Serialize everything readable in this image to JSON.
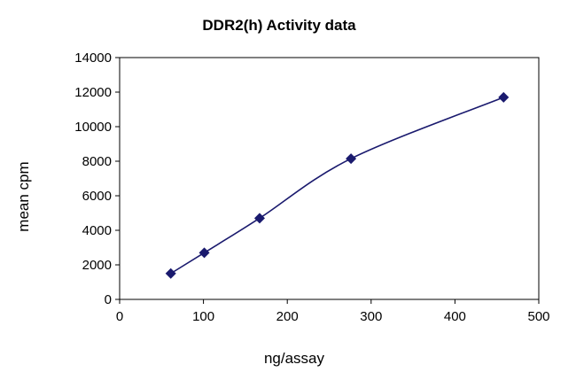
{
  "chart_data": {
    "type": "line",
    "title": "DDR2(h) Activity data",
    "xlabel": "ng/assay",
    "ylabel": "mean cpm",
    "xlim": [
      0,
      500
    ],
    "ylim": [
      0,
      14000
    ],
    "xticks": [
      0,
      100,
      200,
      300,
      400,
      500
    ],
    "yticks": [
      0,
      2000,
      4000,
      6000,
      8000,
      10000,
      12000,
      14000
    ],
    "grid": false,
    "legend": "none",
    "smooth": true,
    "marker": "diamond",
    "color": "#1a1a6e",
    "series": [
      {
        "x": [
          61,
          101,
          167,
          276,
          458
        ],
        "y": [
          1500,
          2700,
          4700,
          8150,
          11700
        ]
      }
    ]
  }
}
